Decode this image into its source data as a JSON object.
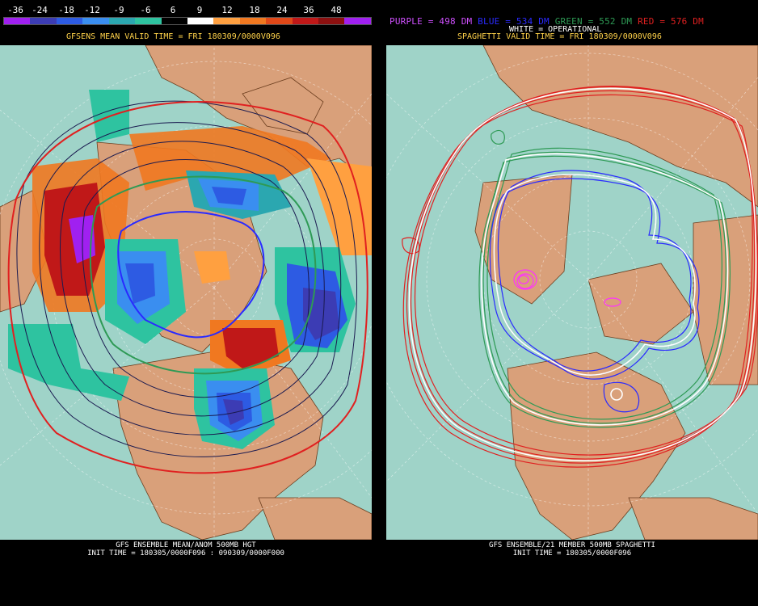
{
  "colorbar": {
    "labels": [
      "-36",
      "-24",
      "-18",
      "-12",
      "-9",
      "-6",
      "6",
      "9",
      "12",
      "18",
      "24",
      "36",
      "48"
    ],
    "colors": [
      "#a020f0",
      "#3c3cb4",
      "#2d5be3",
      "#3a8ef0",
      "#2ba7b0",
      "#2ec3a0",
      "#000000",
      "#ffffff",
      "#ffa040",
      "#f07820",
      "#e04818",
      "#c01818",
      "#8c1010",
      "#a020f0"
    ]
  },
  "left": {
    "header": "GFSENS MEAN VALID TIME = FRI 180309/0000V096",
    "footer_line1": "GFS ENSEMBLE MEAN/ANOM 500MB HGT",
    "footer_line2": "INIT TIME = 180305/0000F096 : 090309/0000F000"
  },
  "right": {
    "legend": [
      {
        "text": "PURPLE = 498 DM",
        "color": "#d050ff"
      },
      {
        "text": "BLUE = 534 DM",
        "color": "#2a2aff"
      },
      {
        "text": "GREEN = 552 DM",
        "color": "#2e9a55"
      },
      {
        "text": "RED = 576 DM",
        "color": "#e02020"
      }
    ],
    "header": "SPAGHETTI VALID TIME = FRI 180309/0000V096",
    "operational": "WHITE = OPERATIONAL",
    "footer_line1": "GFS ENSEMBLE/21 MEMBER 500MB SPAGHETTI",
    "footer_line2": "INIT TIME = 180305/0000F096"
  },
  "colors": {
    "ocean": "#9fd3c8",
    "land": "#d9a07a",
    "coast": "#6b3d1e",
    "header_left": "#ffd24a",
    "header_right": "#ffd24a"
  }
}
